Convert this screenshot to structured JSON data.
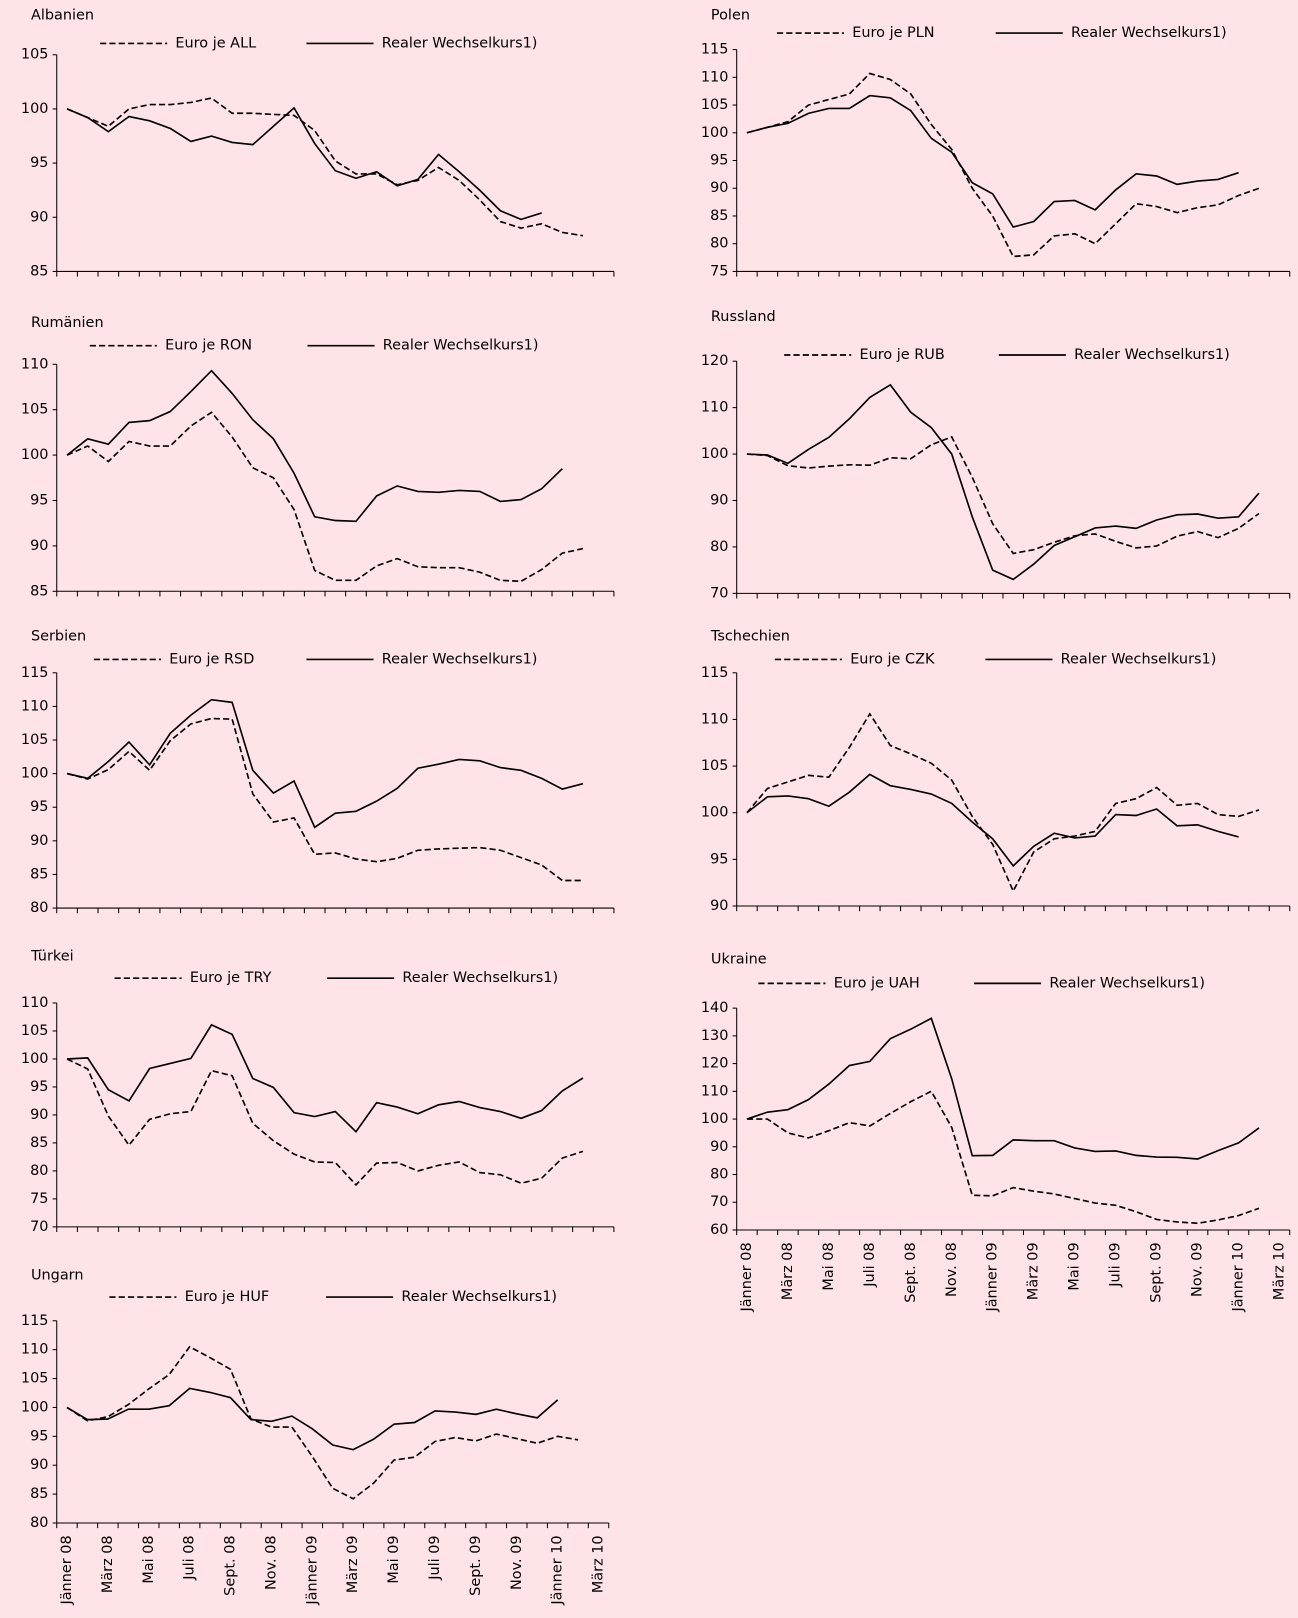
{
  "chart_data": [
    {
      "type": "line",
      "title": "Albanien",
      "ylim": [
        85,
        105
      ],
      "yticks": [
        85,
        90,
        95,
        100,
        105
      ],
      "series": [
        {
          "name": "Euro je ALL",
          "color": "#000",
          "style": "dashed",
          "values": [
            100,
            99.2,
            98.4,
            100,
            100.4,
            100.4,
            100.6,
            101,
            99.6,
            99.6,
            99.5,
            99.4,
            98,
            95.2,
            94,
            94,
            93,
            93.4,
            94.6,
            93.4,
            91.6,
            89.6,
            89,
            89.4,
            88.6,
            88.3,
            null
          ]
        },
        {
          "name": "Realer Wechselkurs1)",
          "color": "#000",
          "style": "solid",
          "values": [
            100,
            99.2,
            97.9,
            99.3,
            98.9,
            98.2,
            97,
            97.5,
            96.9,
            96.7,
            98.4,
            100.1,
            96.8,
            94.3,
            93.6,
            94.2,
            92.9,
            93.5,
            95.8,
            94.2,
            92.5,
            90.6,
            89.8,
            90.4,
            null,
            null,
            null
          ]
        }
      ]
    },
    {
      "type": "line",
      "title": "Polen",
      "ylim": [
        75,
        115
      ],
      "yticks": [
        75,
        80,
        85,
        90,
        95,
        100,
        105,
        110,
        115
      ],
      "series": [
        {
          "name": "Euro je  PLN",
          "color": "#000",
          "style": "dashed",
          "values": [
            100,
            101,
            102,
            105,
            106,
            107,
            110.7,
            109.6,
            107,
            101.5,
            97,
            90,
            85,
            77.7,
            78,
            81.4,
            81.8,
            80,
            83.6,
            87.2,
            86.7,
            85.6,
            86.5,
            87,
            88.7,
            90,
            null
          ]
        },
        {
          "name": "Realer Wechselkurs1)",
          "color": "#000",
          "style": "solid",
          "values": [
            100,
            101,
            101.7,
            103.5,
            104.4,
            104.4,
            106.7,
            106.3,
            104,
            99,
            96.5,
            91,
            89,
            83,
            84,
            87.6,
            87.8,
            86.1,
            89.7,
            92.6,
            92.2,
            90.7,
            91.3,
            91.6,
            92.8,
            null,
            null
          ]
        }
      ]
    },
    {
      "type": "line",
      "title": "Rumänien",
      "ylim": [
        85,
        110
      ],
      "yticks": [
        85,
        90,
        95,
        100,
        105,
        110
      ],
      "series": [
        {
          "name": "Euro je RON",
          "color": "#000",
          "style": "dashed",
          "values": [
            100,
            101,
            99.3,
            101.5,
            101,
            101,
            103.2,
            104.7,
            102,
            98.6,
            97.5,
            94,
            87.3,
            86.2,
            86.2,
            87.8,
            88.6,
            87.7,
            87.6,
            87.6,
            87.1,
            86.2,
            86.1,
            87.4,
            89.2,
            89.7,
            null
          ]
        },
        {
          "name": "Realer Wechselkurs1)",
          "color": "#000",
          "style": "solid",
          "values": [
            100,
            101.8,
            101.2,
            103.6,
            103.8,
            104.8,
            107,
            109.3,
            106.8,
            103.9,
            101.8,
            98,
            93.2,
            92.8,
            92.7,
            95.5,
            96.6,
            96,
            95.9,
            96.1,
            96,
            94.9,
            95.1,
            96.3,
            98.5,
            null,
            null
          ]
        }
      ]
    },
    {
      "type": "line",
      "title": "Russland",
      "ylim": [
        70,
        120
      ],
      "yticks": [
        70,
        80,
        90,
        100,
        110,
        120
      ],
      "series": [
        {
          "name": "Euro je RUB",
          "color": "#000",
          "style": "dashed",
          "values": [
            100,
            99.7,
            97.5,
            97,
            97.4,
            97.7,
            97.6,
            99.2,
            99,
            102,
            103.7,
            95,
            85,
            78.6,
            79.4,
            81,
            82.4,
            82.8,
            81.2,
            79.8,
            80.2,
            82.3,
            83.3,
            82,
            84,
            87.2,
            null
          ]
        },
        {
          "name": "Realer Wechselkurs1)",
          "color": "#000",
          "style": "solid",
          "values": [
            100,
            99.8,
            98,
            101,
            103.6,
            107.6,
            112.2,
            114.9,
            109,
            105.7,
            100,
            86.5,
            75,
            73,
            76.3,
            80.3,
            82.2,
            84.1,
            84.5,
            84,
            85.8,
            86.9,
            87.1,
            86.2,
            86.5,
            91.6,
            null
          ]
        }
      ]
    },
    {
      "type": "line",
      "title": "Serbien",
      "ylim": [
        80,
        115
      ],
      "yticks": [
        80,
        85,
        90,
        95,
        100,
        105,
        110,
        115
      ],
      "series": [
        {
          "name": "Euro je RSD",
          "color": "#000",
          "style": "dashed",
          "values": [
            100,
            99.2,
            100.6,
            103.3,
            100.5,
            104.9,
            107.4,
            108.2,
            108.1,
            97,
            92.8,
            93.4,
            88,
            88.2,
            87.3,
            86.9,
            87.4,
            88.6,
            88.8,
            88.9,
            89,
            88.6,
            87.5,
            86.4,
            84.1,
            84.1,
            null
          ]
        },
        {
          "name": "Realer Wechselkurs1)",
          "color": "#000",
          "style": "solid",
          "values": [
            100,
            99.3,
            101.8,
            104.7,
            101.3,
            106,
            108.7,
            111,
            110.6,
            100.5,
            97.1,
            98.9,
            92,
            94.1,
            94.4,
            95.9,
            97.8,
            100.8,
            101.4,
            102.1,
            101.9,
            100.9,
            100.5,
            99.3,
            97.7,
            98.5,
            null
          ]
        }
      ]
    },
    {
      "type": "line",
      "title": "Tschechien",
      "ylim": [
        90,
        115
      ],
      "yticks": [
        90,
        95,
        100,
        105,
        110,
        115
      ],
      "series": [
        {
          "name": "Euro je CZK",
          "color": "#000",
          "style": "dashed",
          "values": [
            100,
            102.6,
            103.3,
            104,
            103.8,
            107,
            110.6,
            107.2,
            106.3,
            105.3,
            103.5,
            99.6,
            96.6,
            91.6,
            95.8,
            97.2,
            97.5,
            98,
            101,
            101.5,
            102.7,
            100.8,
            101,
            99.8,
            99.6,
            100.3,
            null
          ]
        },
        {
          "name": "Realer Wechselkurs1)",
          "color": "#000",
          "style": "solid",
          "values": [
            100,
            101.7,
            101.8,
            101.5,
            100.7,
            102.2,
            104.1,
            102.9,
            102.5,
            102,
            101,
            99,
            97.2,
            94.3,
            96.4,
            97.8,
            97.3,
            97.5,
            99.8,
            99.7,
            100.4,
            98.6,
            98.7,
            98,
            97.4,
            null,
            null
          ]
        }
      ]
    },
    {
      "type": "line",
      "title": "Türkei",
      "ylim": [
        70,
        110
      ],
      "yticks": [
        70,
        75,
        80,
        85,
        90,
        95,
        100,
        105,
        110
      ],
      "series": [
        {
          "name": "Euro je TRY",
          "color": "#000",
          "style": "dashed",
          "values": [
            100,
            98.2,
            89.8,
            84.6,
            89.2,
            90.2,
            90.6,
            97.9,
            97,
            88.5,
            85.4,
            83,
            81.6,
            81.5,
            77.5,
            81.4,
            81.5,
            80,
            81,
            81.6,
            79.7,
            79.3,
            77.8,
            78.7,
            82.3,
            83.5,
            null
          ]
        },
        {
          "name": "Realer Wechselkurs1)",
          "color": "#000",
          "style": "solid",
          "values": [
            100,
            100.2,
            94.5,
            92.5,
            98.3,
            99.2,
            100.1,
            106.1,
            104.4,
            96.5,
            94.9,
            90.4,
            89.7,
            90.6,
            87,
            92.2,
            91.4,
            90.2,
            91.8,
            92.4,
            91.3,
            90.6,
            89.4,
            90.8,
            94.3,
            96.6,
            null
          ]
        }
      ]
    },
    {
      "type": "line",
      "title": "Ukraine",
      "ylim": [
        60,
        140
      ],
      "yticks": [
        60,
        70,
        80,
        90,
        100,
        110,
        120,
        130,
        140
      ],
      "categories": [
        "Jänner 08",
        null,
        "März 08",
        null,
        "Mai 08",
        null,
        "Juli 08",
        null,
        "Sept. 08",
        null,
        "Nov. 08",
        null,
        "Jänner 09",
        null,
        "März 09",
        null,
        "Mai 09",
        null,
        "Juli 09",
        null,
        "Sept. 09",
        null,
        "Nov. 09",
        null,
        "Jänner 10",
        null,
        "März 10"
      ],
      "series": [
        {
          "name": "Euro je UAH",
          "color": "#000",
          "style": "dashed",
          "values": [
            100,
            100,
            95,
            93.2,
            95.8,
            98.7,
            97.5,
            102,
            106.3,
            110,
            97,
            72.5,
            72.3,
            75.3,
            74,
            73,
            71.3,
            69.7,
            68.9,
            66.6,
            63.8,
            62.9,
            62.4,
            63.6,
            65.2,
            67.8,
            null
          ]
        },
        {
          "name": "Realer Wechselkurs1)",
          "color": "#000",
          "style": "solid",
          "values": [
            100,
            102.5,
            103.4,
            107,
            112.6,
            119.3,
            120.8,
            129,
            132.4,
            136.3,
            114.5,
            86.8,
            86.9,
            92.5,
            92.2,
            92.2,
            89.6,
            88.3,
            88.5,
            86.9,
            86.3,
            86.2,
            85.6,
            88.6,
            91.4,
            96.8,
            null
          ]
        }
      ]
    },
    {
      "type": "line",
      "title": "Ungarn",
      "ylim": [
        80,
        115
      ],
      "yticks": [
        80,
        85,
        90,
        95,
        100,
        105,
        110,
        115
      ],
      "categories": [
        "Jänner 08",
        null,
        "März 08",
        null,
        "Mai 08",
        null,
        "Juli 08",
        null,
        "Sept. 08",
        null,
        "Nov. 08",
        null,
        "Jänner 09",
        null,
        "März 09",
        null,
        "Mai 09",
        null,
        "Juli 09",
        null,
        "Sept. 09",
        null,
        "Nov. 09",
        null,
        "Jänner 10",
        null,
        "März 10"
      ],
      "series": [
        {
          "name": "Euro je HUF",
          "color": "#000",
          "style": "dashed",
          "values": [
            100,
            97.7,
            98.4,
            100.5,
            103.2,
            105.7,
            110.5,
            108.6,
            106.6,
            98,
            96.6,
            96.6,
            91.5,
            86,
            84.2,
            86.9,
            90.9,
            91.4,
            94.1,
            94.8,
            94.2,
            95.4,
            94.6,
            93.8,
            95,
            94.4,
            null
          ]
        },
        {
          "name": "Realer Wechselkurs1)",
          "color": "#000",
          "style": "solid",
          "values": [
            100,
            97.9,
            98,
            99.7,
            99.7,
            100.3,
            103.3,
            102.6,
            101.7,
            97.9,
            97.6,
            98.5,
            96.3,
            93.5,
            92.7,
            94.5,
            97.1,
            97.4,
            99.4,
            99.2,
            98.8,
            99.7,
            98.9,
            98.2,
            101.3,
            null,
            null
          ]
        }
      ]
    }
  ]
}
